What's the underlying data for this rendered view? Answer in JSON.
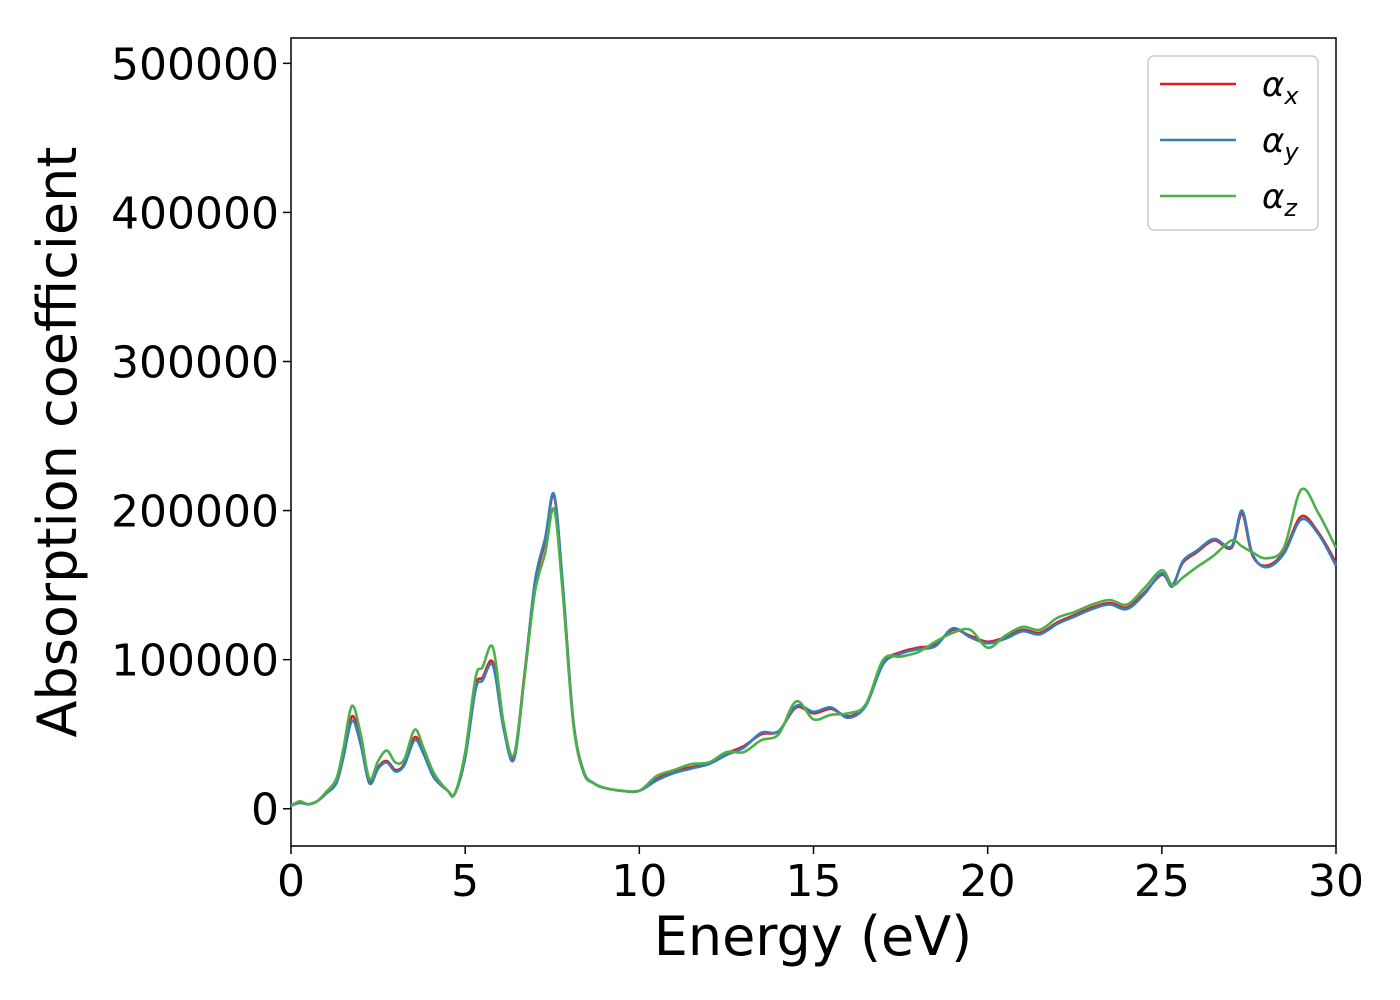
{
  "chart_data": {
    "type": "line",
    "title": "",
    "xlabel": "Energy (eV)",
    "ylabel": "Absorption coefficient",
    "xlim": [
      0,
      30
    ],
    "ylim": [
      -25000,
      517000
    ],
    "xticks": [
      0,
      5,
      10,
      15,
      20,
      25,
      30
    ],
    "yticks": [
      0,
      100000,
      200000,
      300000,
      400000,
      500000
    ],
    "grid": false,
    "legend_position": "top-right",
    "series": [
      {
        "name": "α_x",
        "label_main": "α",
        "label_sub": "x",
        "color": "#e41a1c",
        "x": [
          0,
          0.25,
          0.5,
          0.75,
          1,
          1.3,
          1.5,
          1.75,
          2,
          2.25,
          2.5,
          2.75,
          3,
          3.25,
          3.55,
          3.8,
          4.1,
          4.5,
          4.7,
          5,
          5.3,
          5.5,
          5.8,
          6.1,
          6.4,
          6.7,
          7,
          7.3,
          7.55,
          7.8,
          8.1,
          8.4,
          8.7,
          9,
          9.5,
          10,
          10.5,
          11,
          11.5,
          12,
          12.5,
          13,
          13.5,
          14,
          14.5,
          15,
          15.5,
          16,
          16.5,
          17,
          17.5,
          18,
          18.5,
          19,
          19.5,
          20,
          20.5,
          21,
          21.5,
          22,
          22.5,
          23,
          23.5,
          24,
          24.5,
          25,
          25.3,
          25.6,
          26,
          26.5,
          27,
          27.3,
          27.6,
          28,
          28.5,
          29,
          29.5,
          30
        ],
        "y": [
          2000,
          4000,
          3000,
          5000,
          10000,
          18000,
          35000,
          62000,
          45000,
          18000,
          28000,
          32000,
          26000,
          30000,
          48000,
          38000,
          22000,
          12000,
          10000,
          35000,
          82000,
          88000,
          98000,
          55000,
          35000,
          90000,
          150000,
          180000,
          210000,
          150000,
          60000,
          25000,
          17000,
          14000,
          12000,
          12000,
          20000,
          25000,
          28000,
          30000,
          37000,
          42000,
          50000,
          52000,
          68000,
          64000,
          67000,
          62000,
          70000,
          98000,
          105000,
          108000,
          110000,
          120000,
          116000,
          112000,
          115000,
          120000,
          118000,
          125000,
          130000,
          135000,
          138000,
          135000,
          145000,
          157000,
          150000,
          165000,
          172000,
          180000,
          175000,
          198000,
          170000,
          163000,
          172000,
          196000,
          185000,
          165000
        ]
      },
      {
        "name": "α_y",
        "label_main": "α",
        "label_sub": "y",
        "color": "#377eb8",
        "x": [
          0,
          0.25,
          0.5,
          0.75,
          1,
          1.3,
          1.5,
          1.75,
          2,
          2.25,
          2.5,
          2.75,
          3,
          3.25,
          3.55,
          3.8,
          4.1,
          4.5,
          4.7,
          5,
          5.3,
          5.5,
          5.8,
          6.1,
          6.4,
          6.7,
          7,
          7.3,
          7.55,
          7.8,
          8.1,
          8.4,
          8.7,
          9,
          9.5,
          10,
          10.5,
          11,
          11.5,
          12,
          12.5,
          13,
          13.5,
          14,
          14.5,
          15,
          15.5,
          16,
          16.5,
          17,
          17.5,
          18,
          18.5,
          19,
          19.5,
          20,
          20.5,
          21,
          21.5,
          22,
          22.5,
          23,
          23.5,
          24,
          24.5,
          25,
          25.3,
          25.6,
          26,
          26.5,
          27,
          27.3,
          27.6,
          28,
          28.5,
          29,
          29.5,
          30
        ],
        "y": [
          2000,
          4000,
          3000,
          5000,
          10000,
          17000,
          34000,
          59000,
          43000,
          17000,
          27000,
          31000,
          25000,
          29000,
          46000,
          37000,
          21000,
          12000,
          10000,
          34000,
          80000,
          86000,
          96000,
          54000,
          33000,
          88000,
          152000,
          182000,
          211000,
          151000,
          60000,
          25000,
          17000,
          14000,
          12000,
          12000,
          19000,
          24000,
          27000,
          30000,
          36000,
          41000,
          51000,
          52000,
          69000,
          65000,
          68000,
          61000,
          69000,
          97000,
          104000,
          107000,
          109000,
          121000,
          115000,
          111000,
          114000,
          119000,
          117000,
          124000,
          129000,
          134000,
          137000,
          134000,
          144000,
          158000,
          149000,
          166000,
          173000,
          181000,
          176000,
          200000,
          171000,
          162000,
          171000,
          194000,
          184000,
          163000
        ]
      },
      {
        "name": "α_z",
        "label_main": "α",
        "label_sub": "z",
        "color": "#4daf4a",
        "x": [
          0,
          0.25,
          0.5,
          0.75,
          1,
          1.3,
          1.5,
          1.75,
          2,
          2.25,
          2.5,
          2.75,
          3,
          3.25,
          3.55,
          3.8,
          4.1,
          4.5,
          4.7,
          5,
          5.3,
          5.5,
          5.8,
          6.1,
          6.4,
          6.7,
          7,
          7.3,
          7.55,
          7.8,
          8.1,
          8.4,
          8.7,
          9,
          9.5,
          10,
          10.5,
          11,
          11.5,
          12,
          12.5,
          13,
          13.5,
          14,
          14.5,
          15,
          15.5,
          16,
          16.5,
          17,
          17.5,
          18,
          18.5,
          19,
          19.5,
          20,
          20.5,
          21,
          21.5,
          22,
          22.5,
          23,
          23.5,
          24,
          24.5,
          25,
          25.3,
          25.6,
          26,
          26.5,
          27,
          27.3,
          27.6,
          28,
          28.5,
          29,
          29.5,
          30
        ],
        "y": [
          2000,
          5000,
          3000,
          5000,
          11000,
          20000,
          40000,
          69000,
          50000,
          20000,
          32000,
          39000,
          31000,
          33000,
          53000,
          41000,
          24000,
          12000,
          10000,
          38000,
          88000,
          95000,
          108000,
          58000,
          36000,
          88000,
          145000,
          172000,
          201000,
          145000,
          58000,
          24000,
          17000,
          14000,
          12000,
          12000,
          22000,
          26000,
          30000,
          31000,
          38000,
          38000,
          46000,
          50000,
          72000,
          60000,
          63000,
          64000,
          70000,
          100000,
          102000,
          105000,
          112000,
          118000,
          120000,
          108000,
          116000,
          122000,
          120000,
          128000,
          132000,
          137000,
          140000,
          137000,
          148000,
          160000,
          150000,
          155000,
          162000,
          170000,
          180000,
          176000,
          172000,
          168000,
          175000,
          214000,
          198000,
          175000
        ]
      }
    ]
  }
}
